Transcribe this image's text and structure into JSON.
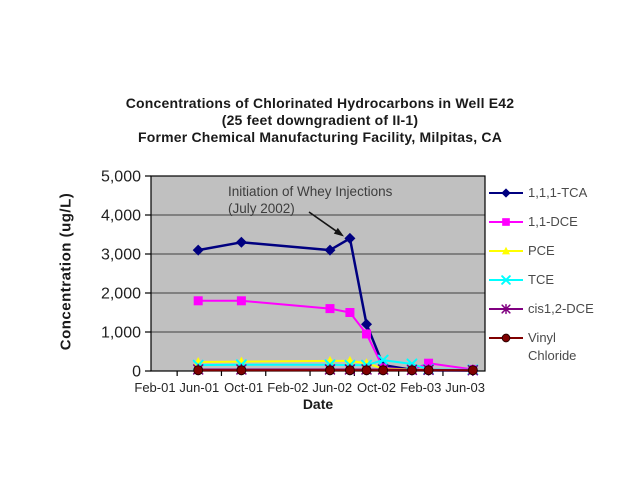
{
  "chart_data": {
    "type": "line",
    "title": {
      "line1": "Concentrations of Chlorinated Hydrocarbons in Well E42",
      "line2": "(25 feet downgradient of II-1)",
      "line3": "Former Chemical Manufacturing Facility, Milpitas, CA"
    },
    "xlabel": "Date",
    "ylabel": "Concentration  (ug/L)",
    "x_ticks": [
      {
        "label": "Feb-01",
        "m": 0
      },
      {
        "label": "Jun-01",
        "m": 4
      },
      {
        "label": "Oct-01",
        "m": 8
      },
      {
        "label": "Feb-02",
        "m": 12
      },
      {
        "label": "Jun-02",
        "m": 16
      },
      {
        "label": "Oct-02",
        "m": 20
      },
      {
        "label": "Feb-03",
        "m": 24
      },
      {
        "label": "Jun-03",
        "m": 28
      }
    ],
    "y_ticks": [
      {
        "label": "0",
        "v": 0
      },
      {
        "label": "1,000",
        "v": 1000
      },
      {
        "label": "2,000",
        "v": 2000
      },
      {
        "label": "3,000",
        "v": 3000
      },
      {
        "label": "4,000",
        "v": 4000
      },
      {
        "label": "5,000",
        "v": 5000
      }
    ],
    "x_range_months": [
      -0.4,
      29.8
    ],
    "ylim": [
      0,
      5000
    ],
    "grid": "horizontal",
    "plot_bg": "#c0c0c0",
    "grid_color": "#3f3f3f",
    "axis_color": "#000000",
    "legend_position": "right",
    "sample_dates": [
      "Jun-01",
      "Oct-01",
      "Jun-02",
      "Aug-02",
      "Sep-02",
      "Nov-02",
      "Jan-03",
      "Mar-03",
      "Jul-03"
    ],
    "month_offsets": [
      3.9,
      7.8,
      15.8,
      17.6,
      19.1,
      20.6,
      23.2,
      24.7,
      28.7
    ],
    "series": [
      {
        "name": "1,1,1-TCA",
        "color": "#000080",
        "marker": "diamond",
        "values": [
          3100,
          3300,
          3100,
          3400,
          1200,
          150,
          30,
          20,
          10
        ]
      },
      {
        "name": "1,1-DCE",
        "color": "#ff00ff",
        "marker": "square",
        "values": [
          1800,
          1800,
          1600,
          1500,
          950,
          80,
          30,
          200,
          40
        ]
      },
      {
        "name": "PCE",
        "color": "#ffff00",
        "marker": "triangle",
        "values": [
          230,
          240,
          260,
          260,
          200,
          60,
          40,
          30,
          20
        ]
      },
      {
        "name": "TCE",
        "color": "#00ffff",
        "marker": "x",
        "values": [
          150,
          160,
          160,
          150,
          150,
          280,
          180,
          40,
          30
        ]
      },
      {
        "name": "cis1,2-DCE",
        "color": "#800080",
        "marker": "asterisk",
        "values": [
          40,
          40,
          40,
          40,
          40,
          40,
          30,
          30,
          20
        ]
      },
      {
        "name": "Vinyl Chloride",
        "color": "#800000",
        "marker": "circle",
        "values": [
          20,
          20,
          20,
          20,
          20,
          20,
          20,
          20,
          20
        ]
      }
    ],
    "annotation": {
      "line1": "Initiation of Whey Injections",
      "line2": "(July 2002)",
      "text_x": 228,
      "text_y1": 196,
      "text_y2": 213,
      "arrow_tail": [
        309,
        212
      ],
      "arrow_tip": [
        344,
        236.5
      ]
    }
  }
}
